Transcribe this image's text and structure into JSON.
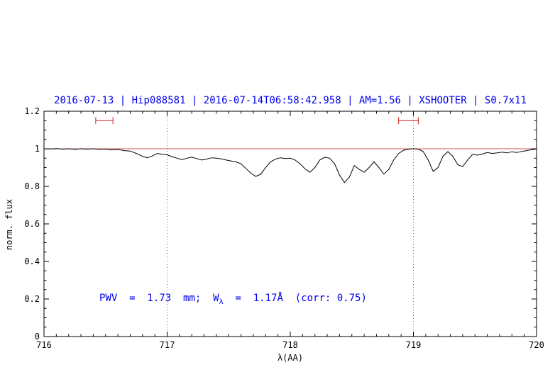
{
  "chart_data": {
    "type": "line",
    "title": "2016-07-13 | Hip088581 | 2016-07-14T06:58:42.958 | AM=1.56 | XSHOOTER | S0.7x11",
    "xlabel": "λ(AA)",
    "ylabel": "norm. flux",
    "xlim": [
      716,
      720
    ],
    "ylim": [
      0,
      1.2
    ],
    "x_ticks": [
      716,
      717,
      718,
      719,
      720
    ],
    "x_tick_labels": [
      "716",
      "717",
      "718",
      "719",
      "720"
    ],
    "y_ticks": [
      0,
      0.2,
      0.4,
      0.6,
      0.8,
      1.0,
      1.2
    ],
    "y_tick_labels": [
      "0",
      "0.2",
      "0.4",
      "0.6",
      "0.8",
      "1",
      "1.2"
    ],
    "x_minor_step": 0.1,
    "y_minor_step": 0.05,
    "grid": "off",
    "legend": "none",
    "dotted_vlines": [
      717,
      719
    ],
    "continuum_y": 1.0,
    "band_markers": [
      {
        "x1": 716.42,
        "x2": 716.56,
        "y": 1.15
      },
      {
        "x1": 718.88,
        "x2": 719.04,
        "y": 1.15
      }
    ],
    "annotation": {
      "prefix": "PWV  =  1.73  mm;  W",
      "sub": "λ",
      "suffix": "  =  1.17Å  (corr: 0.75)"
    },
    "colors": {
      "title": "#0000ee",
      "annotation": "#0000ee",
      "continuum": "#cc2222",
      "marker": "#cc2222",
      "spectrum": "#000000",
      "axis": "#000000"
    },
    "series": [
      {
        "name": "normalized telluric spectrum",
        "color": "#000000",
        "points": [
          [
            716.0,
            1.0
          ],
          [
            716.05,
            0.999
          ],
          [
            716.1,
            1.001
          ],
          [
            716.15,
            0.998
          ],
          [
            716.2,
            1.0
          ],
          [
            716.25,
            0.997
          ],
          [
            716.3,
            1.0
          ],
          [
            716.35,
            0.998
          ],
          [
            716.4,
            1.0
          ],
          [
            716.45,
            0.997
          ],
          [
            716.5,
            0.999
          ],
          [
            716.55,
            0.994
          ],
          [
            716.6,
            0.997
          ],
          [
            716.65,
            0.99
          ],
          [
            716.7,
            0.988
          ],
          [
            716.75,
            0.975
          ],
          [
            716.8,
            0.96
          ],
          [
            716.84,
            0.952
          ],
          [
            716.88,
            0.962
          ],
          [
            716.92,
            0.975
          ],
          [
            716.96,
            0.97
          ],
          [
            717.0,
            0.968
          ],
          [
            717.04,
            0.958
          ],
          [
            717.08,
            0.95
          ],
          [
            717.12,
            0.942
          ],
          [
            717.16,
            0.95
          ],
          [
            717.2,
            0.955
          ],
          [
            717.24,
            0.948
          ],
          [
            717.28,
            0.94
          ],
          [
            717.32,
            0.945
          ],
          [
            717.36,
            0.952
          ],
          [
            717.4,
            0.95
          ],
          [
            717.44,
            0.946
          ],
          [
            717.48,
            0.94
          ],
          [
            717.52,
            0.935
          ],
          [
            717.56,
            0.93
          ],
          [
            717.6,
            0.92
          ],
          [
            717.64,
            0.895
          ],
          [
            717.68,
            0.87
          ],
          [
            717.72,
            0.853
          ],
          [
            717.76,
            0.865
          ],
          [
            717.8,
            0.9
          ],
          [
            717.84,
            0.93
          ],
          [
            717.88,
            0.945
          ],
          [
            717.92,
            0.952
          ],
          [
            717.96,
            0.948
          ],
          [
            718.0,
            0.95
          ],
          [
            718.04,
            0.94
          ],
          [
            718.08,
            0.92
          ],
          [
            718.12,
            0.893
          ],
          [
            718.16,
            0.875
          ],
          [
            718.2,
            0.9
          ],
          [
            718.24,
            0.94
          ],
          [
            718.28,
            0.955
          ],
          [
            718.32,
            0.95
          ],
          [
            718.36,
            0.92
          ],
          [
            718.4,
            0.86
          ],
          [
            718.44,
            0.82
          ],
          [
            718.48,
            0.85
          ],
          [
            718.52,
            0.91
          ],
          [
            718.56,
            0.89
          ],
          [
            718.6,
            0.875
          ],
          [
            718.64,
            0.9
          ],
          [
            718.68,
            0.93
          ],
          [
            718.72,
            0.9
          ],
          [
            718.76,
            0.865
          ],
          [
            718.8,
            0.89
          ],
          [
            718.84,
            0.94
          ],
          [
            718.88,
            0.975
          ],
          [
            718.92,
            0.992
          ],
          [
            718.96,
            0.998
          ],
          [
            719.0,
            1.0
          ],
          [
            719.04,
            0.998
          ],
          [
            719.08,
            0.985
          ],
          [
            719.12,
            0.94
          ],
          [
            719.16,
            0.88
          ],
          [
            719.2,
            0.9
          ],
          [
            719.24,
            0.96
          ],
          [
            719.28,
            0.985
          ],
          [
            719.32,
            0.96
          ],
          [
            719.36,
            0.915
          ],
          [
            719.4,
            0.905
          ],
          [
            719.44,
            0.94
          ],
          [
            719.48,
            0.97
          ],
          [
            719.52,
            0.966
          ],
          [
            719.56,
            0.972
          ],
          [
            719.6,
            0.98
          ],
          [
            719.64,
            0.975
          ],
          [
            719.68,
            0.978
          ],
          [
            719.72,
            0.982
          ],
          [
            719.76,
            0.978
          ],
          [
            719.8,
            0.984
          ],
          [
            719.84,
            0.98
          ],
          [
            719.88,
            0.986
          ],
          [
            719.92,
            0.99
          ],
          [
            719.96,
            0.995
          ],
          [
            720.0,
            0.999
          ]
        ]
      }
    ]
  }
}
